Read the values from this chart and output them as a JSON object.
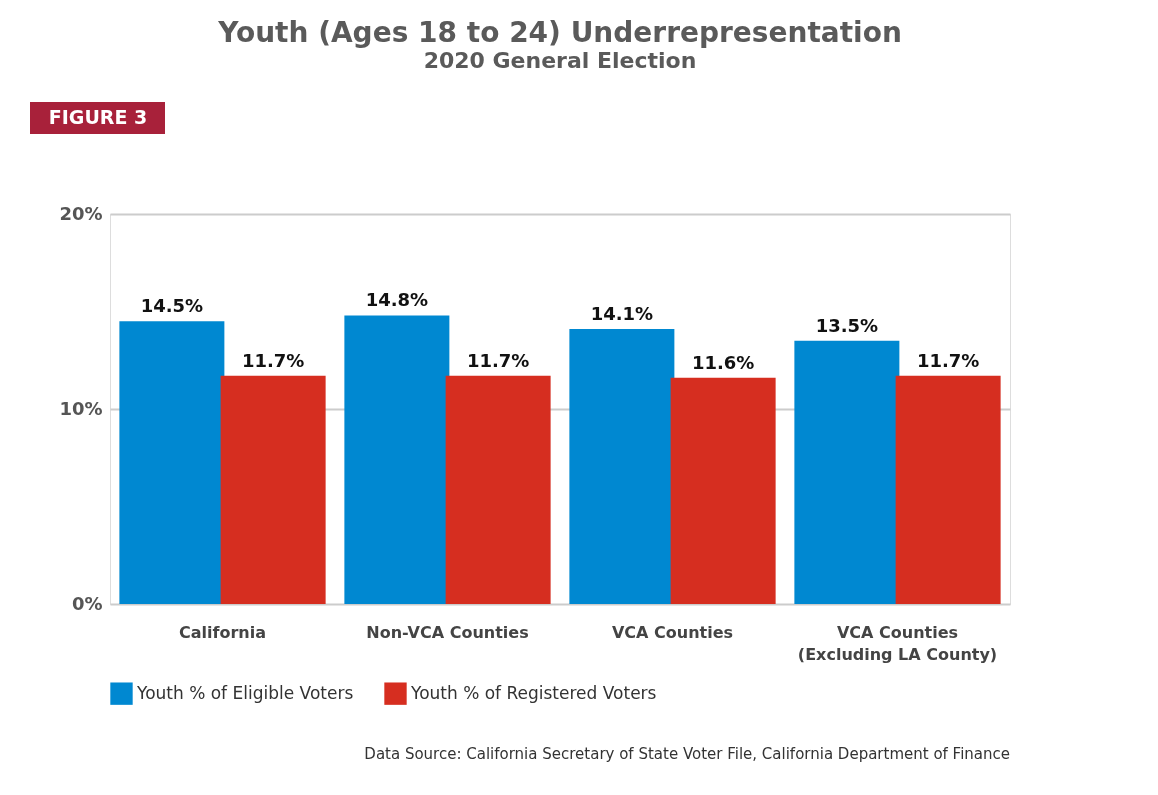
{
  "chart_data": {
    "type": "bar",
    "title": "Youth (Ages 18 to 24) Underrepresentation",
    "subtitle": "2020 General Election",
    "categories": [
      "California",
      "Non-VCA Counties",
      "VCA Counties",
      "VCA Counties\n(Excluding LA County)"
    ],
    "series": [
      {
        "name": "Youth % of Eligible Voters",
        "color": "#0088d1",
        "values": [
          14.5,
          14.8,
          14.1,
          13.5
        ],
        "value_labels": [
          "14.5%",
          "14.8%",
          "14.1%",
          "13.5%"
        ]
      },
      {
        "name": "Youth % of Registered Voters",
        "color": "#d62e20",
        "values": [
          11.7,
          11.7,
          11.6,
          11.7
        ],
        "value_labels": [
          "11.7%",
          "11.7%",
          "11.6%",
          "11.7%"
        ]
      }
    ],
    "ylim": [
      0,
      20
    ],
    "yticks": [
      {
        "value": 0,
        "label": "0%"
      },
      {
        "value": 10,
        "label": "10%"
      },
      {
        "value": 20,
        "label": "20%"
      }
    ],
    "grid": "y",
    "legend": "bottom",
    "annotations": [
      "FIGURE 3",
      "Data Source: California Secretary of State Voter File, California Department of Finance"
    ]
  }
}
